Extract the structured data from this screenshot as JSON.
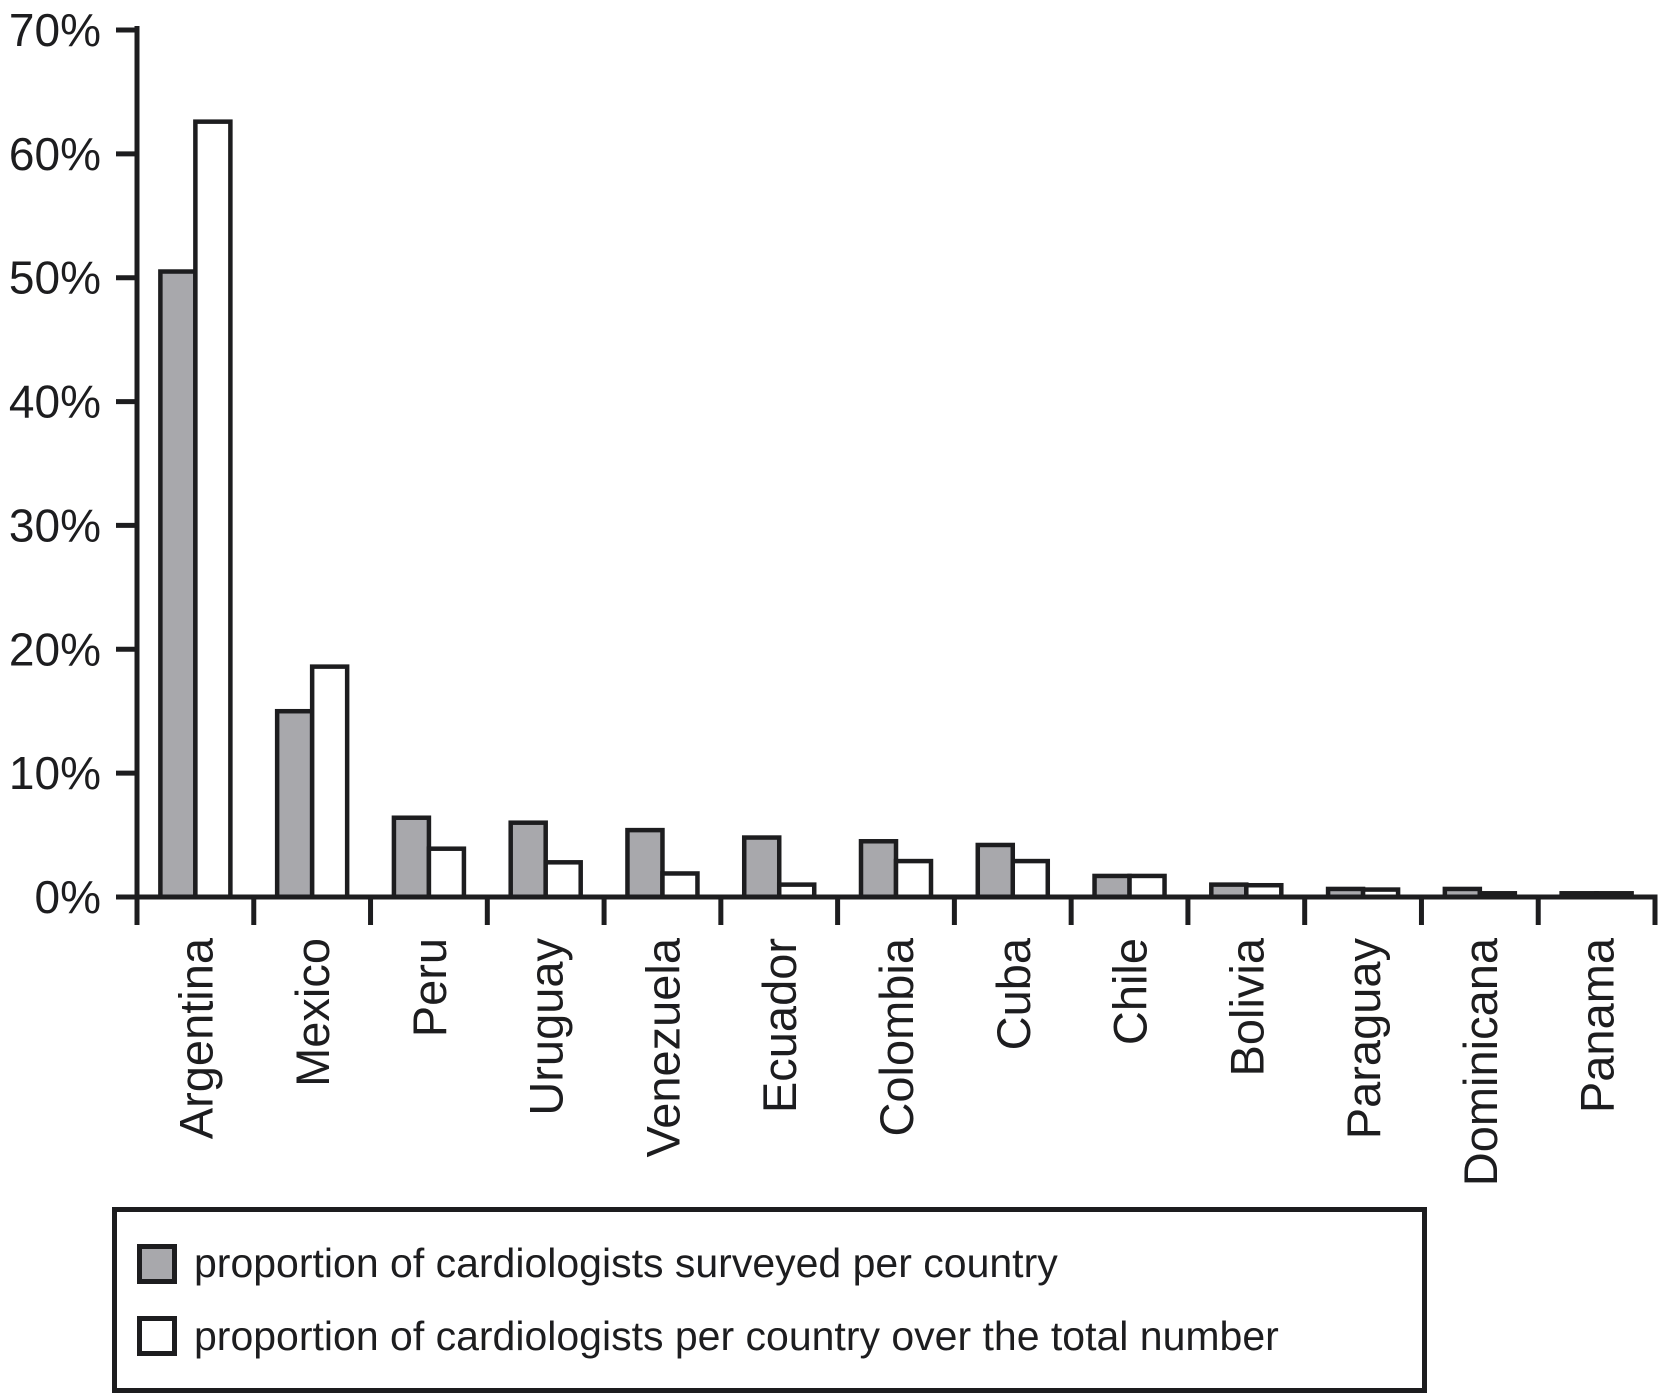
{
  "chart_data": {
    "type": "bar",
    "title": "",
    "xlabel": "",
    "ylabel": "",
    "ylim": [
      0,
      70
    ],
    "ytick_step": 10,
    "ytick_labels": [
      "0%",
      "10%",
      "20%",
      "30%",
      "40%",
      "50%",
      "60%",
      "70%"
    ],
    "grid": false,
    "legend_position": "bottom-left boxed",
    "axis_color": "#1d1d1f",
    "bar_outline_color": "#1d1d1f",
    "categories": [
      "Argentina",
      "Mexico",
      "Peru",
      "Uruguay",
      "Venezuela",
      "Ecuador",
      "Colombia",
      "Cuba",
      "Chile",
      "Bolivia",
      "Paraguay",
      "Dominicana",
      "Panama"
    ],
    "series": [
      {
        "name": "proportion of cardiologists surveyed per country",
        "color": "#a8a8ac",
        "values": [
          50.5,
          15.0,
          6.4,
          6.0,
          5.4,
          4.8,
          4.5,
          4.2,
          1.7,
          1.0,
          0.65,
          0.65,
          0.3
        ]
      },
      {
        "name": "proportion of cardiologists per country over the total number",
        "color": "#ffffff",
        "values": [
          62.6,
          18.6,
          3.9,
          2.8,
          1.9,
          1.0,
          2.9,
          2.9,
          1.7,
          0.95,
          0.6,
          0.3,
          0.3
        ]
      }
    ]
  }
}
